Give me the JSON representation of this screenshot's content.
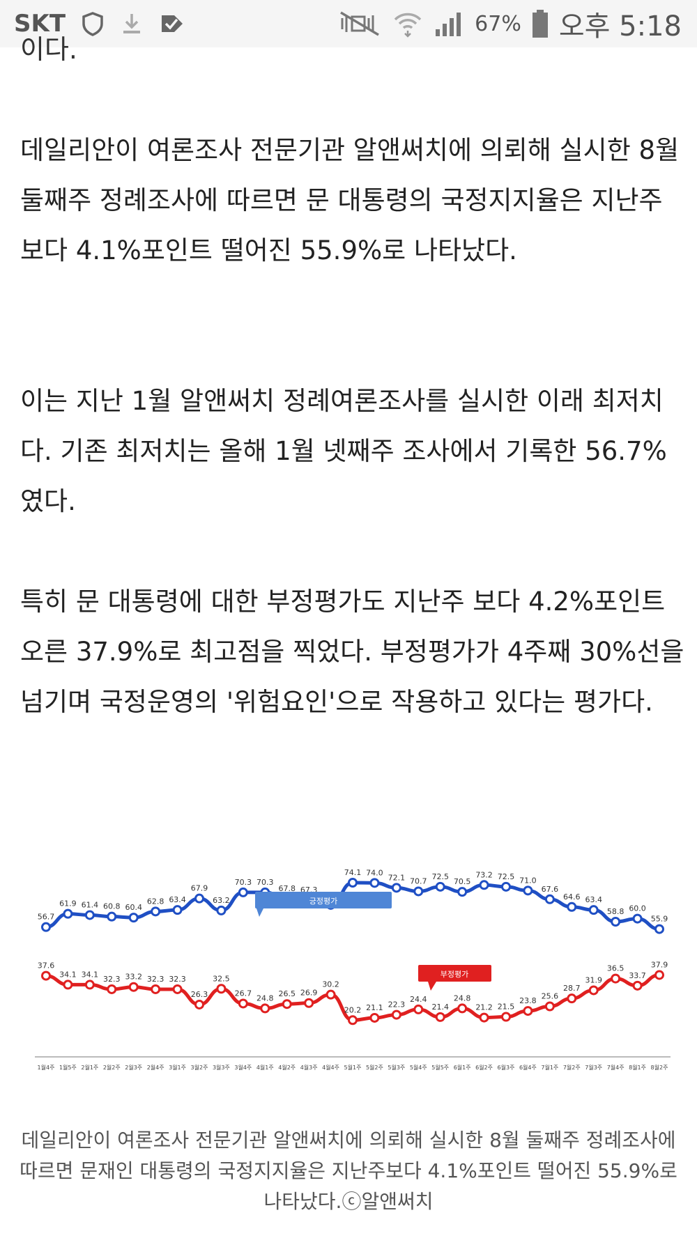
{
  "status_bar": {
    "carrier": "SKT",
    "battery": "67%",
    "time": "오후 5:18",
    "icons": [
      "shield-icon",
      "download-icon",
      "task-icon",
      "mute-icon",
      "wifi-icon",
      "signal-icon",
      "battery-icon"
    ]
  },
  "article": {
    "cut_line": "이다.",
    "paragraphs": [
      "데일리안이 여론조사 전문기관 알앤써치에 의뢰해 실시한 8월 둘째주 정례조사에 따르면 문 대통령의 국정지지율은 지난주보다 4.1%포인트 떨어진 55.9%로 나타났다.",
      "이는 지난 1월 알앤써치 정례여론조사를 실시한 이래 최저치다. 기존 최저치는 올해 1월 넷째주 조사에서 기록한 56.7%였다.",
      "특히 문 대통령에 대한 부정평가도 지난주 보다 4.2%포인트 오른 37.9%로 최고점을 찍었다. 부정평가가 4주째 30%선을 넘기며 국정운영의 '위험요인'으로 작용하고 있다는 평가다."
    ],
    "caption": "데일리안이 여론조사 전문기관 알앤써치에 의뢰해 실시한 8월 둘째주 정례조사에 따르면 문재인 대통령의 국정지지율은 지난주보다 4.1%포인트 떨어진 55.9%로 나타났다.ⓒ알앤써치"
  },
  "chart_data": {
    "type": "line",
    "categories": [
      "1월4주",
      "1월5주",
      "2월1주",
      "2월2주",
      "2월3주",
      "2월4주",
      "3월1주",
      "3월2주",
      "3월3주",
      "3월4주",
      "4월1주",
      "4월2주",
      "4월3주",
      "4월4주",
      "5월1주",
      "5월2주",
      "5월3주",
      "5월4주",
      "5월5주",
      "6월1주",
      "6월2주",
      "6월3주",
      "6월4주",
      "7월1주",
      "7월2주",
      "7월3주",
      "7월4주",
      "8월1주",
      "8월2주"
    ],
    "series": [
      {
        "name": "긍정평가",
        "color": "#1f4fc4",
        "values": [
          56.7,
          61.9,
          61.4,
          60.8,
          60.4,
          62.8,
          63.4,
          67.9,
          63.2,
          70.3,
          70.3,
          67.8,
          67.3,
          65.4,
          74.1,
          74.0,
          72.1,
          70.7,
          72.5,
          70.5,
          73.2,
          72.5,
          71.0,
          67.6,
          64.6,
          63.4,
          58.8,
          60.0,
          55.9
        ]
      },
      {
        "name": "부정평가",
        "color": "#e02020",
        "values": [
          37.6,
          34.1,
          34.1,
          32.3,
          33.2,
          32.3,
          32.3,
          26.3,
          32.5,
          26.7,
          24.8,
          26.5,
          26.9,
          30.2,
          20.2,
          21.1,
          22.3,
          24.4,
          21.4,
          24.8,
          21.2,
          21.5,
          23.8,
          25.6,
          28.7,
          31.9,
          36.5,
          33.7,
          37.9
        ]
      }
    ],
    "legend_placement": "callouts",
    "grid": false
  }
}
